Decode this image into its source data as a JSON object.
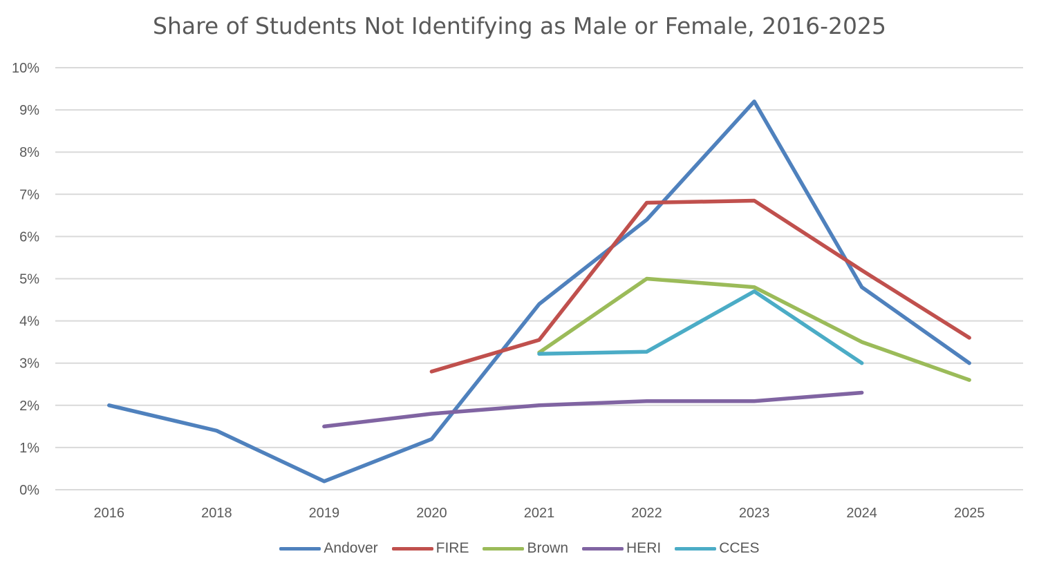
{
  "chart_data": {
    "type": "line",
    "title": "Share of Students Not Identifying as Male or Female, 2016-2025",
    "categories": [
      "2016",
      "2018",
      "2019",
      "2020",
      "2021",
      "2022",
      "2023",
      "2024",
      "2025"
    ],
    "y_tick_labels": [
      "0%",
      "1%",
      "2%",
      "3%",
      "4%",
      "5%",
      "6%",
      "7%",
      "8%",
      "9%",
      "10%"
    ],
    "ylim": [
      0,
      10
    ],
    "grid": true,
    "legend_position": "bottom",
    "series": [
      {
        "name": "Andover",
        "color": "#4F81BD",
        "values": [
          2.0,
          1.4,
          0.2,
          1.2,
          4.4,
          6.4,
          9.2,
          4.8,
          3.0
        ]
      },
      {
        "name": "FIRE",
        "color": "#C0504D",
        "values": [
          null,
          null,
          null,
          2.8,
          3.55,
          6.8,
          6.85,
          5.2,
          3.6
        ]
      },
      {
        "name": "Brown",
        "color": "#9BBB59",
        "values": [
          null,
          null,
          null,
          null,
          3.25,
          5.0,
          4.8,
          3.5,
          2.6
        ]
      },
      {
        "name": "HERI",
        "color": "#8064A2",
        "values": [
          null,
          null,
          1.5,
          1.8,
          2.0,
          2.1,
          2.1,
          2.3,
          null
        ]
      },
      {
        "name": "CCES",
        "color": "#4BACC6",
        "values": [
          null,
          null,
          null,
          null,
          3.22,
          3.27,
          4.7,
          3.0,
          null
        ]
      }
    ]
  }
}
